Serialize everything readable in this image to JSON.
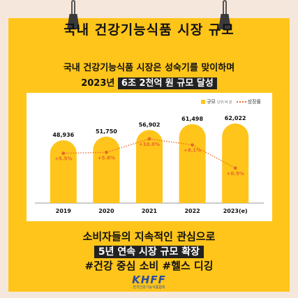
{
  "title": "국내 건강기능식품 시장 규모",
  "subtitle_line1": "국내 건강기능식품 시장은 성숙기를 맞이하며",
  "subtitle_line2_prefix": "2023년",
  "subtitle_line2_highlight": "6조 2천억 원 규모 달성",
  "legend": {
    "bar_label": "규모",
    "bar_unit": "단위:억 원",
    "line_label": "성장률"
  },
  "colors": {
    "bar": "#ffc51a",
    "growth": "#e8692a",
    "background": "#ffc51a",
    "panel": "#ffffff"
  },
  "chart_data": {
    "type": "bar",
    "categories": [
      "2019",
      "2020",
      "2021",
      "2022",
      "2023(e)"
    ],
    "series": [
      {
        "name": "규모",
        "values": [
          48936,
          51750,
          56902,
          61498,
          62022
        ],
        "labels": [
          "48,936",
          "51,750",
          "56,902",
          "61,498",
          "62,022"
        ]
      },
      {
        "name": "성장률",
        "values": [
          5.5,
          5.8,
          10.0,
          8.1,
          0.9
        ],
        "labels": [
          "+5.5%",
          "+5.8%",
          "+10.0%",
          "+8.1%",
          "+0.9%"
        ]
      }
    ],
    "ylim": [
      0,
      75000
    ],
    "growth_ylim": [
      -10,
      20
    ]
  },
  "bottom_line1": "소비자들의 지속적인 관심으로",
  "bottom_line2": "5년 연속 시장 규모 확장",
  "bottom_line3": "#건강 중심 소비 #헬스 디깅",
  "logo": {
    "mark": "KHFF",
    "org": "한국건강기능식품협회"
  }
}
